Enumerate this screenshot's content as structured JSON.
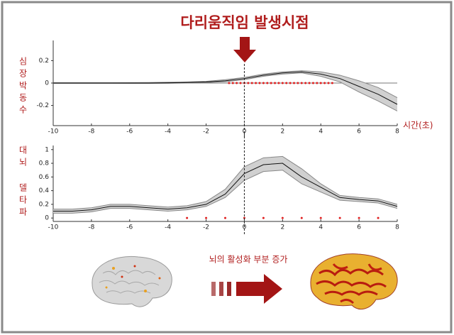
{
  "title": "다리움직임 발생시점",
  "caption": "뇌의 활성화 부분 증가",
  "chart_data": [
    {
      "type": "band-line",
      "ylabel": "심장박동수",
      "xlabel": "시간(초)",
      "xlim": [
        -10,
        8
      ],
      "xticks": [
        -10,
        -8,
        -6,
        -4,
        -2,
        0,
        2,
        4,
        6,
        8
      ],
      "ylim": [
        -0.38,
        0.38
      ],
      "yticks": [
        0.2,
        0,
        -0.2
      ],
      "x": [
        -10,
        -9,
        -8,
        -7,
        -6,
        -5,
        -4,
        -3,
        -2,
        -1,
        0,
        1,
        2,
        3,
        4,
        5,
        6,
        7,
        8
      ],
      "values": [
        0,
        0,
        0,
        0,
        0,
        0,
        0.002,
        0.005,
        0.01,
        0.02,
        0.04,
        0.07,
        0.09,
        0.1,
        0.08,
        0.04,
        -0.03,
        -0.1,
        -0.19
      ],
      "upper": [
        0.003,
        0.003,
        0.003,
        0.003,
        0.004,
        0.005,
        0.007,
        0.01,
        0.015,
        0.03,
        0.05,
        0.08,
        0.1,
        0.11,
        0.1,
        0.07,
        0.02,
        -0.04,
        -0.13
      ],
      "lower": [
        -0.003,
        -0.003,
        -0.003,
        -0.003,
        -0.004,
        -0.004,
        -0.003,
        0,
        0.005,
        0.012,
        0.03,
        0.06,
        0.08,
        0.09,
        0.06,
        0.01,
        -0.08,
        -0.16,
        -0.25
      ],
      "color": "#111111",
      "band_color": "#d0d0d0",
      "zero_line": true,
      "vline": 0,
      "markers_x": [
        -0.8,
        -0.6,
        -0.4,
        -0.2,
        0,
        0.2,
        0.4,
        0.6,
        0.8,
        1,
        1.2,
        1.4,
        1.6,
        1.8,
        2,
        2.2,
        2.4,
        2.6,
        2.8,
        3,
        3.2,
        3.4,
        3.6,
        3.8,
        4,
        4.2,
        4.4,
        4.6
      ],
      "marker_y": 0,
      "marker_color": "#e02020"
    },
    {
      "type": "band-line",
      "ylabel": "대뇌 델타파",
      "xlim": [
        -10,
        8
      ],
      "xticks": [
        -10,
        -8,
        -6,
        -4,
        -2,
        0,
        2,
        4,
        6,
        8
      ],
      "ylim": [
        -0.05,
        1.06
      ],
      "yticks": [
        0,
        0.2,
        0.4,
        0.6,
        0.8,
        1
      ],
      "x": [
        -10,
        -9,
        -8,
        -7,
        -6,
        -5,
        -4,
        -3,
        -2,
        -1,
        0,
        1,
        2,
        3,
        4,
        5,
        6,
        7,
        8
      ],
      "values": [
        0.1,
        0.1,
        0.12,
        0.17,
        0.17,
        0.15,
        0.13,
        0.15,
        0.2,
        0.35,
        0.65,
        0.78,
        0.8,
        0.6,
        0.45,
        0.3,
        0.27,
        0.25,
        0.17
      ],
      "upper": [
        0.13,
        0.13,
        0.15,
        0.2,
        0.2,
        0.18,
        0.16,
        0.18,
        0.24,
        0.42,
        0.75,
        0.88,
        0.9,
        0.72,
        0.5,
        0.33,
        0.3,
        0.28,
        0.2
      ],
      "lower": [
        0.07,
        0.07,
        0.09,
        0.14,
        0.14,
        0.12,
        0.1,
        0.12,
        0.17,
        0.3,
        0.55,
        0.68,
        0.7,
        0.5,
        0.38,
        0.26,
        0.24,
        0.22,
        0.14
      ],
      "color": "#111111",
      "band_color": "#d0d0d0",
      "zero_line": false,
      "vline": 0,
      "markers_x": [
        -3,
        -2,
        -1,
        0,
        1,
        2,
        3,
        4,
        5,
        6,
        7
      ],
      "marker_y": 0,
      "marker_color": "#e02020"
    }
  ]
}
